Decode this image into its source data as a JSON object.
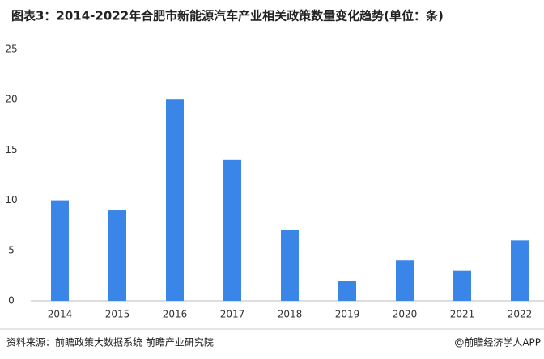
{
  "chart_data": {
    "type": "bar",
    "title": "图表3：2014-2022年合肥市新能源汽车产业相关政策数量变化趋势(单位：条)",
    "categories": [
      "2014",
      "2015",
      "2016",
      "2017",
      "2018",
      "2019",
      "2020",
      "2021",
      "2022"
    ],
    "values": [
      10,
      9,
      20,
      14,
      7,
      2,
      4,
      3,
      6
    ],
    "color": "#3a86e8",
    "ylim": [
      0,
      25
    ],
    "yticks": [
      0,
      5,
      10,
      15,
      20,
      25
    ],
    "grid": false,
    "source": "资料来源：前瞻政策大数据系统 前瞻产业研究院",
    "credit": "@前瞻经济学人APP"
  }
}
